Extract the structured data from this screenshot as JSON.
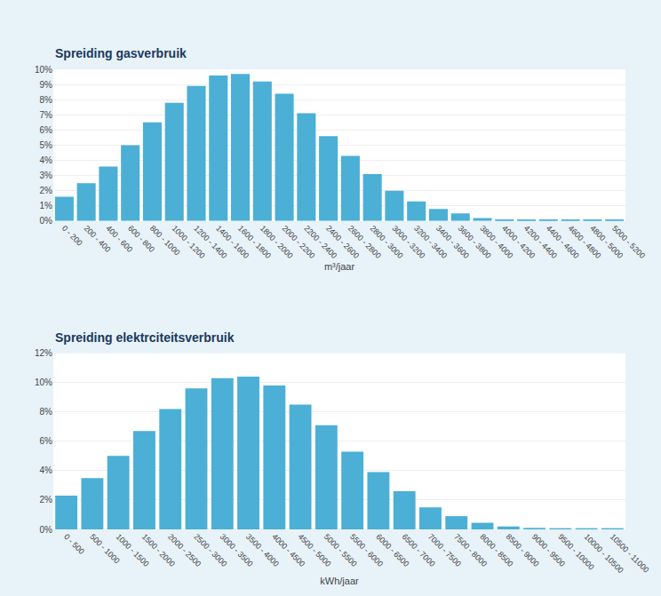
{
  "chart_data": [
    {
      "type": "bar",
      "title": "Spreiding gasverbruik",
      "xlabel": "m³/jaar",
      "categories": [
        "0 - 200",
        "200 - 400",
        "400 - 600",
        "600 - 800",
        "800 - 1000",
        "1000 - 1200",
        "1200 - 1400",
        "1400 - 1600",
        "1600 - 1800",
        "1800 - 2000",
        "2000 - 2200",
        "2200 - 2400",
        "2400 - 2600",
        "2600 - 2800",
        "2800 - 3000",
        "3000 - 3200",
        "3200 - 3400",
        "3400 - 3600",
        "3600 - 3800",
        "3800 - 4000",
        "4000 - 4200",
        "4200 - 4400",
        "4400 - 4600",
        "4600 - 4800",
        "4800 - 5000",
        "5000 - 5200"
      ],
      "values": [
        1.6,
        2.5,
        3.6,
        5.0,
        6.5,
        7.8,
        8.9,
        9.6,
        9.7,
        9.2,
        8.4,
        7.1,
        5.6,
        4.3,
        3.1,
        2.0,
        1.3,
        0.8,
        0.5,
        0.2,
        0.1,
        0.05,
        0.05,
        0.05,
        0.05,
        0.05
      ],
      "color": "#4bafd6",
      "ylim": [
        0,
        10
      ],
      "yticks": [
        {
          "value": 0,
          "label": "0%"
        },
        {
          "value": 1,
          "label": "1%"
        },
        {
          "value": 2,
          "label": "2%"
        },
        {
          "value": 3,
          "label": "3%"
        },
        {
          "value": 4,
          "label": "4%"
        },
        {
          "value": 5,
          "label": "5%"
        },
        {
          "value": 6,
          "label": "6%"
        },
        {
          "value": 7,
          "label": "7%"
        },
        {
          "value": 8,
          "label": "8%"
        },
        {
          "value": 9,
          "label": "9%"
        },
        {
          "value": 10,
          "label": "10%"
        }
      ],
      "grid": true
    },
    {
      "type": "bar",
      "title": "Spreiding elektrciteitsverbruik",
      "xlabel": "kWh/jaar",
      "categories": [
        "0 - 500",
        "500 - 1000",
        "1000 - 1500",
        "1500 - 2000",
        "2000 - 2500",
        "2500 - 3000",
        "3000 - 3500",
        "3500 - 4000",
        "4000 - 4500",
        "4500 - 5000",
        "5000 - 5500",
        "5500 - 6000",
        "6000 - 6500",
        "6500 - 7000",
        "7000 - 7500",
        "7500 - 8000",
        "8000 - 8500",
        "8500 - 9000",
        "9000 - 9500",
        "9500 - 10000",
        "10000 - 10500",
        "10500 - 11000"
      ],
      "values": [
        2.3,
        3.5,
        5.0,
        6.7,
        8.2,
        9.6,
        10.3,
        10.4,
        9.8,
        8.5,
        7.1,
        5.3,
        3.9,
        2.6,
        1.5,
        0.9,
        0.45,
        0.2,
        0.1,
        0.07,
        0.05,
        0.05
      ],
      "color": "#4bafd6",
      "ylim": [
        0,
        12
      ],
      "yticks": [
        {
          "value": 0,
          "label": "0%"
        },
        {
          "value": 2,
          "label": "2%"
        },
        {
          "value": 4,
          "label": "4%"
        },
        {
          "value": 6,
          "label": "6%"
        },
        {
          "value": 8,
          "label": "8%"
        },
        {
          "value": 10,
          "label": "10%"
        },
        {
          "value": 12,
          "label": "12%"
        }
      ],
      "grid": true
    }
  ]
}
